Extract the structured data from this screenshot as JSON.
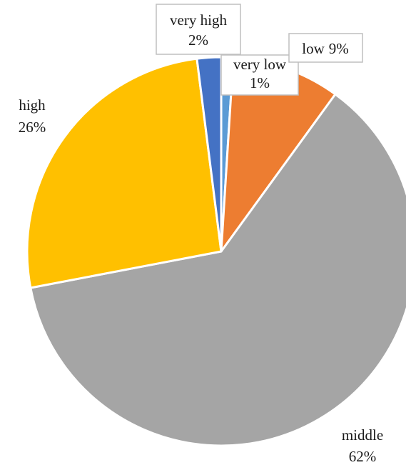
{
  "chart_data": {
    "type": "pie",
    "title": "",
    "start_angle_deg": 0,
    "direction": "clockwise",
    "slices": [
      {
        "name": "very low",
        "value": 1,
        "label": "1%",
        "color": "#5b9bd5"
      },
      {
        "name": "low",
        "value": 9,
        "label": "9%",
        "color": "#ed7d31"
      },
      {
        "name": "middle",
        "value": 62,
        "label": "62%",
        "color": "#a5a5a5"
      },
      {
        "name": "high",
        "value": 26,
        "label": "26%",
        "color": "#ffc000"
      },
      {
        "name": "very high",
        "value": 2,
        "label": "2%",
        "color": "#4472c4"
      }
    ],
    "legend": "none",
    "data_labels": "category-and-percent"
  }
}
